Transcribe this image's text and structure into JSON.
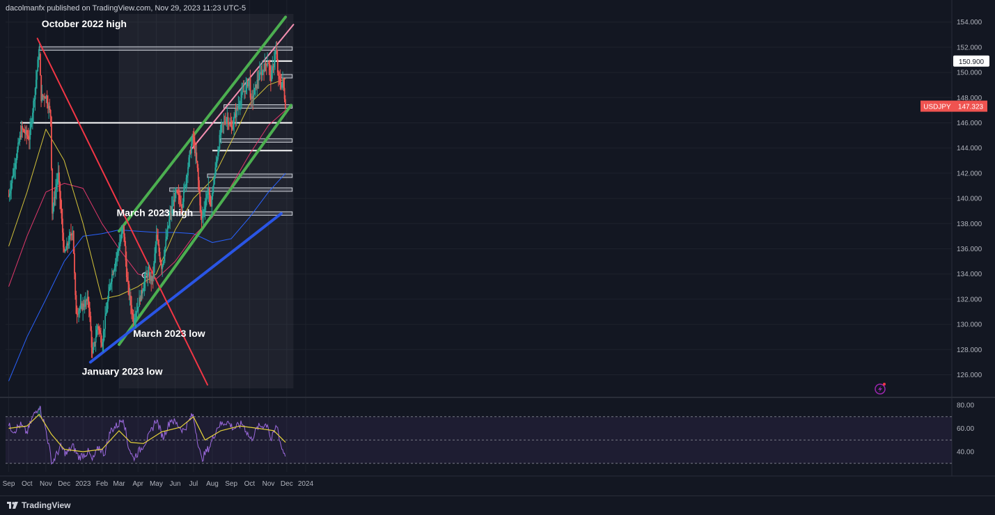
{
  "header": {
    "published_text": "dacolmanfx published on TradingView.com, Nov 29, 2023 11:23 UTC-5"
  },
  "footer": {
    "brand": "TradingView"
  },
  "colors": {
    "background": "#131722",
    "grid": "#1e222d",
    "axis_text": "#b2b5be",
    "bull": "#26a69a",
    "bear": "#ef5350",
    "sma50": "#d4c33a",
    "sma100": "#e0386b",
    "sma200": "#2962ff",
    "channel": "#4caf50",
    "support_line": "#2a55e5",
    "resistance_line": "#f23645",
    "pink_line": "#f48fb1",
    "rsi": "#9c6ade",
    "rsi_ma": "#e6d33a"
  },
  "chart_data": [
    {
      "type": "candlestick",
      "symbol": "USDJPY",
      "last_price": "147.323",
      "marker_price": "150.900",
      "x_axis_labels": [
        "Sep",
        "Oct",
        "Nov",
        "Dec",
        "2023",
        "Feb",
        "Mar",
        "Apr",
        "May",
        "Jun",
        "Jul",
        "Aug",
        "Sep",
        "Oct",
        "Nov",
        "Dec",
        "2024"
      ],
      "y_axis_labels": [
        "154.000",
        "152.000",
        "150.000",
        "148.000",
        "146.000",
        "144.000",
        "142.000",
        "140.000",
        "138.000",
        "136.000",
        "134.000",
        "132.000",
        "130.000",
        "128.000",
        "126.000"
      ],
      "ylim": [
        125,
        154.5
      ],
      "annotations": [
        "October 2022 high",
        "March 2023 high",
        "March 2023 low",
        "January 2023 low"
      ],
      "horizontal_levels": [
        151.9,
        150.9,
        149.7,
        147.3,
        146.0,
        144.6,
        143.8,
        141.8,
        140.7,
        138.8
      ],
      "price_path": [
        [
          "2022-09-01",
          140.2
        ],
        [
          "2022-09-14",
          143.5
        ],
        [
          "2022-09-22",
          145.5
        ],
        [
          "2022-10-05",
          144.8
        ],
        [
          "2022-10-14",
          148.6
        ],
        [
          "2022-10-21",
          151.9
        ],
        [
          "2022-10-24",
          148.0
        ],
        [
          "2022-11-01",
          148.2
        ],
        [
          "2022-11-09",
          146.5
        ],
        [
          "2022-11-11",
          138.8
        ],
        [
          "2022-11-21",
          142.0
        ],
        [
          "2022-12-01",
          135.5
        ],
        [
          "2022-12-15",
          137.6
        ],
        [
          "2022-12-20",
          131.0
        ],
        [
          "2023-01-01",
          131.5
        ],
        [
          "2023-01-10",
          132.0
        ],
        [
          "2023-01-16",
          127.5
        ],
        [
          "2023-01-25",
          130.0
        ],
        [
          "2023-02-01",
          128.5
        ],
        [
          "2023-02-15",
          133.5
        ],
        [
          "2023-03-01",
          136.2
        ],
        [
          "2023-03-08",
          137.8
        ],
        [
          "2023-03-14",
          133.5
        ],
        [
          "2023-03-24",
          130.4
        ],
        [
          "2023-04-01",
          131.5
        ],
        [
          "2023-04-15",
          134.0
        ],
        [
          "2023-04-25",
          133.5
        ],
        [
          "2023-05-01",
          137.0
        ],
        [
          "2023-05-10",
          134.5
        ],
        [
          "2023-05-23",
          138.5
        ],
        [
          "2023-06-02",
          140.5
        ],
        [
          "2023-06-12",
          139.5
        ],
        [
          "2023-06-25",
          143.5
        ],
        [
          "2023-06-30",
          145.0
        ],
        [
          "2023-07-07",
          142.5
        ],
        [
          "2023-07-14",
          138.2
        ],
        [
          "2023-07-26",
          141.0
        ],
        [
          "2023-07-28",
          139.0
        ],
        [
          "2023-08-05",
          142.0
        ],
        [
          "2023-08-15",
          145.5
        ],
        [
          "2023-08-25",
          146.5
        ],
        [
          "2023-09-01",
          145.5
        ],
        [
          "2023-09-15",
          147.8
        ],
        [
          "2023-10-01",
          149.5
        ],
        [
          "2023-10-03",
          147.5
        ],
        [
          "2023-10-15",
          149.5
        ],
        [
          "2023-10-31",
          151.0
        ],
        [
          "2023-11-05",
          149.5
        ],
        [
          "2023-11-13",
          151.8
        ],
        [
          "2023-11-17",
          149.5
        ],
        [
          "2023-11-22",
          149.0
        ],
        [
          "2023-11-24",
          149.5
        ],
        [
          "2023-11-29",
          147.3
        ]
      ],
      "sma50": [
        [
          "2022-09-01",
          136.2
        ],
        [
          "2022-10-01",
          140.5
        ],
        [
          "2022-11-01",
          145.5
        ],
        [
          "2022-12-01",
          143.0
        ],
        [
          "2023-01-01",
          138.0
        ],
        [
          "2023-02-01",
          132.0
        ],
        [
          "2023-03-01",
          132.3
        ],
        [
          "2023-04-01",
          133.0
        ],
        [
          "2023-05-01",
          134.0
        ],
        [
          "2023-06-01",
          137.5
        ],
        [
          "2023-07-01",
          140.0
        ],
        [
          "2023-08-01",
          141.5
        ],
        [
          "2023-09-01",
          144.5
        ],
        [
          "2023-10-01",
          147.5
        ],
        [
          "2023-11-01",
          149.0
        ],
        [
          "2023-11-29",
          149.5
        ]
      ],
      "sma100": [
        [
          "2022-09-01",
          133.0
        ],
        [
          "2022-10-01",
          137.0
        ],
        [
          "2022-11-01",
          140.5
        ],
        [
          "2022-12-01",
          141.2
        ],
        [
          "2023-01-01",
          140.8
        ],
        [
          "2023-02-01",
          138.0
        ],
        [
          "2023-03-01",
          136.0
        ],
        [
          "2023-04-01",
          134.0
        ],
        [
          "2023-05-01",
          133.6
        ],
        [
          "2023-06-01",
          135.0
        ],
        [
          "2023-07-01",
          137.0
        ],
        [
          "2023-08-01",
          138.5
        ],
        [
          "2023-09-01",
          141.0
        ],
        [
          "2023-10-01",
          143.5
        ],
        [
          "2023-11-01",
          145.8
        ],
        [
          "2023-11-29",
          147.0
        ]
      ],
      "sma200": [
        [
          "2022-09-01",
          125.5
        ],
        [
          "2022-10-01",
          129.0
        ],
        [
          "2022-11-01",
          132.0
        ],
        [
          "2022-12-01",
          135.0
        ],
        [
          "2023-01-01",
          137.0
        ],
        [
          "2023-02-01",
          137.2
        ],
        [
          "2023-03-01",
          137.5
        ],
        [
          "2023-04-01",
          137.4
        ],
        [
          "2023-05-01",
          137.3
        ],
        [
          "2023-06-01",
          137.3
        ],
        [
          "2023-07-01",
          137.2
        ],
        [
          "2023-08-01",
          136.5
        ],
        [
          "2023-09-01",
          136.8
        ],
        [
          "2023-10-01",
          138.5
        ],
        [
          "2023-11-01",
          140.5
        ],
        [
          "2023-11-29",
          142.0
        ]
      ],
      "trendlines": [
        {
          "role": "channel-upper",
          "from": [
            "2023-03-01",
            137.4
          ],
          "to": [
            "2023-11-29",
            154.4
          ]
        },
        {
          "role": "channel-lower",
          "from": [
            "2023-03-01",
            128.4
          ],
          "to": [
            "2023-12-08",
            147.4
          ]
        },
        {
          "role": "pink-line",
          "from": [
            "2023-06-26",
            143.8
          ],
          "to": [
            "2023-12-12",
            153.8
          ]
        },
        {
          "role": "support-line",
          "from": [
            "2023-01-13",
            127.0
          ],
          "to": [
            "2023-11-22",
            138.8
          ]
        },
        {
          "role": "resistance-line",
          "from": [
            "2022-10-18",
            152.7
          ],
          "to": [
            "2023-07-24",
            125.2
          ]
        }
      ]
    },
    {
      "type": "line",
      "indicator": "RSI",
      "y_axis_labels": [
        "80.00",
        "60.00",
        "40.00"
      ],
      "ylim": [
        30,
        82
      ],
      "band": [
        30,
        70
      ],
      "rsi": [
        [
          "2022-09-01",
          62
        ],
        [
          "2022-09-10",
          58
        ],
        [
          "2022-09-20",
          63
        ],
        [
          "2022-10-01",
          56
        ],
        [
          "2022-10-10",
          69
        ],
        [
          "2022-10-21",
          80
        ],
        [
          "2022-11-01",
          59
        ],
        [
          "2022-11-11",
          30
        ],
        [
          "2022-11-25",
          44
        ],
        [
          "2022-12-05",
          38
        ],
        [
          "2022-12-15",
          45
        ],
        [
          "2022-12-25",
          35
        ],
        [
          "2023-01-10",
          40
        ],
        [
          "2023-01-16",
          32
        ],
        [
          "2023-01-27",
          44
        ],
        [
          "2023-02-05",
          38
        ],
        [
          "2023-02-15",
          58
        ],
        [
          "2023-03-01",
          64
        ],
        [
          "2023-03-08",
          70
        ],
        [
          "2023-03-15",
          47
        ],
        [
          "2023-03-24",
          34
        ],
        [
          "2023-04-05",
          42
        ],
        [
          "2023-04-20",
          54
        ],
        [
          "2023-05-01",
          68
        ],
        [
          "2023-05-12",
          52
        ],
        [
          "2023-05-25",
          68
        ],
        [
          "2023-06-05",
          63
        ],
        [
          "2023-06-15",
          58
        ],
        [
          "2023-06-30",
          72
        ],
        [
          "2023-07-14",
          33
        ],
        [
          "2023-07-28",
          45
        ],
        [
          "2023-08-10",
          62
        ],
        [
          "2023-08-25",
          66
        ],
        [
          "2023-09-05",
          60
        ],
        [
          "2023-09-20",
          64
        ],
        [
          "2023-10-03",
          50
        ],
        [
          "2023-10-15",
          61
        ],
        [
          "2023-10-31",
          64
        ],
        [
          "2023-11-05",
          49
        ],
        [
          "2023-11-15",
          63
        ],
        [
          "2023-11-22",
          44
        ],
        [
          "2023-11-29",
          37
        ]
      ],
      "rsi_ma": [
        [
          "2022-09-01",
          60
        ],
        [
          "2022-10-01",
          62
        ],
        [
          "2022-10-21",
          72
        ],
        [
          "2022-11-10",
          55
        ],
        [
          "2022-12-01",
          42
        ],
        [
          "2023-01-01",
          40
        ],
        [
          "2023-02-01",
          42
        ],
        [
          "2023-03-01",
          58
        ],
        [
          "2023-03-20",
          48
        ],
        [
          "2023-04-10",
          47
        ],
        [
          "2023-05-10",
          57
        ],
        [
          "2023-06-10",
          61
        ],
        [
          "2023-07-01",
          70
        ],
        [
          "2023-07-20",
          50
        ],
        [
          "2023-08-15",
          58
        ],
        [
          "2023-09-15",
          62
        ],
        [
          "2023-10-15",
          60
        ],
        [
          "2023-11-10",
          58
        ],
        [
          "2023-11-29",
          48
        ]
      ]
    }
  ]
}
